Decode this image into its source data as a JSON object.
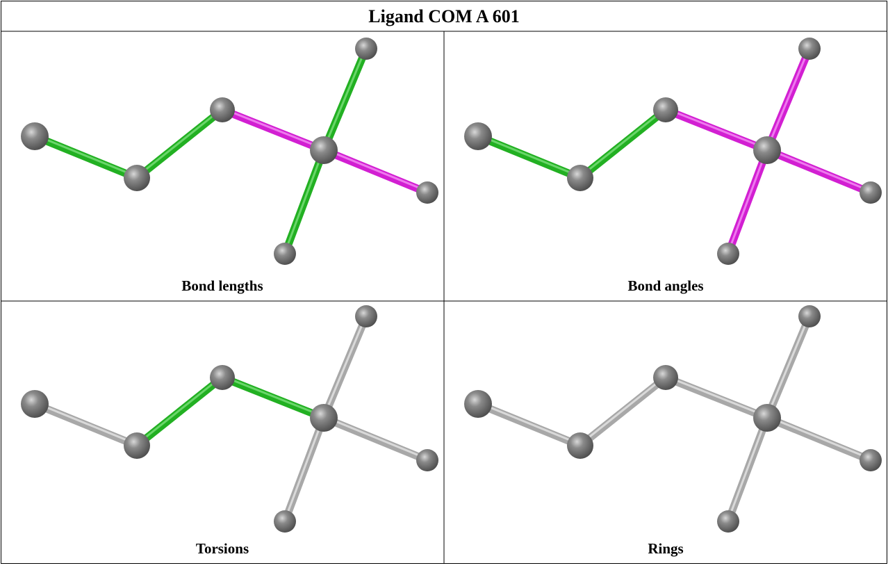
{
  "title": "Ligand COM A 601",
  "panels": [
    {
      "caption": "Bond lengths"
    },
    {
      "caption": "Bond angles"
    },
    {
      "caption": "Torsions"
    },
    {
      "caption": "Rings"
    }
  ]
}
